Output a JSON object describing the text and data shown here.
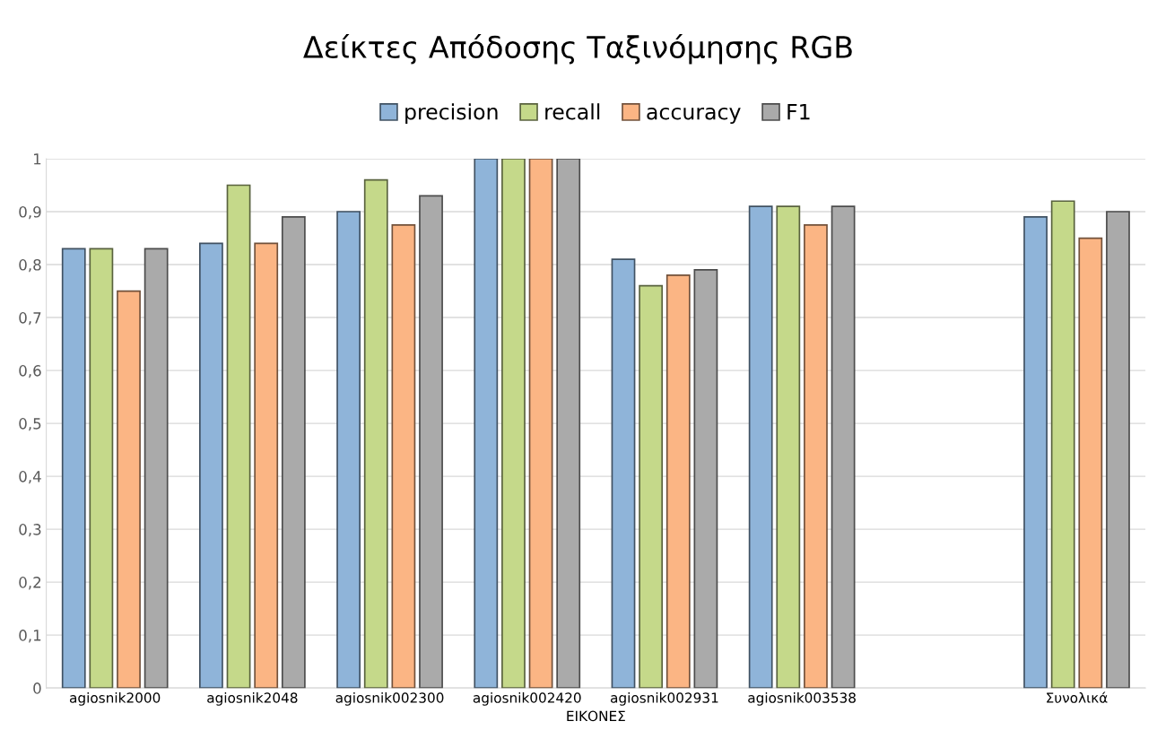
{
  "chart_data": {
    "type": "bar",
    "title": "Δείκτες Απόδοσης Ταξινόμησης RGB",
    "xlabel": "ΕΙΚΟΝΕΣ",
    "categories": [
      "agiosnik2000",
      "agiosnik2048",
      "agiosnik002300",
      "agiosnik002420",
      "agiosnik002931",
      "agiosnik003538",
      null,
      "Συνολικά"
    ],
    "series": [
      {
        "name": "precision",
        "color": "#8fb4d9",
        "values": [
          0.83,
          0.84,
          0.9,
          1,
          0.81,
          0.91,
          null,
          0.89
        ]
      },
      {
        "name": "recall",
        "color": "#c5d98a",
        "values": [
          0.83,
          0.95,
          0.96,
          1,
          0.76,
          0.91,
          null,
          0.92
        ]
      },
      {
        "name": "accuracy",
        "color": "#fbb584",
        "values": [
          0.75,
          0.84,
          0.875,
          1,
          0.78,
          0.875,
          null,
          0.85
        ]
      },
      {
        "name": "F1",
        "color": "#aaaaaa",
        "values": [
          0.83,
          0.89,
          0.93,
          1,
          0.79,
          0.91,
          null,
          0.9
        ]
      }
    ],
    "ylim": [
      0,
      1
    ],
    "yticks": [
      0,
      {
        "value": 0.1,
        "label": "0,1"
      },
      {
        "value": 0.2,
        "label": "0,2"
      },
      {
        "value": 0.3,
        "label": "0,3"
      },
      {
        "value": 0.4,
        "label": "0,4"
      },
      {
        "value": 0.5,
        "label": "0,5"
      },
      {
        "value": 0.6,
        "label": "0,6"
      },
      {
        "value": 0.7,
        "label": "0,7"
      },
      {
        "value": 0.8,
        "label": "0,8"
      },
      {
        "value": 0.9,
        "label": "0,9"
      },
      1
    ],
    "grid": "y",
    "legend": "top"
  }
}
